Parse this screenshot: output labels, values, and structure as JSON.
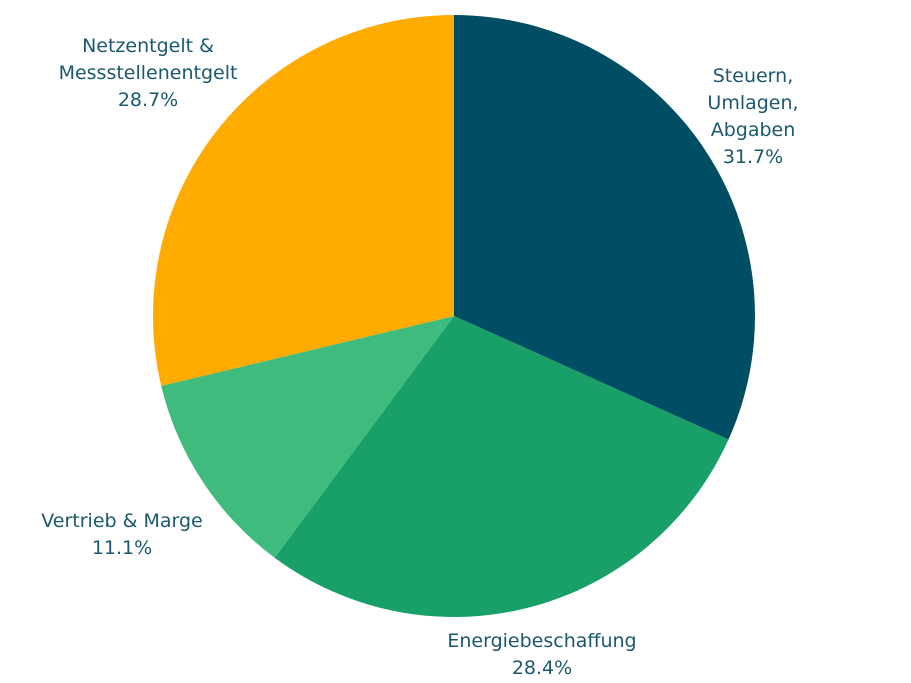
{
  "chart_data": {
    "type": "pie",
    "start": "top",
    "direction": "clockwise",
    "slices": [
      {
        "label_lines": [
          "Steuern,",
          "Umlagen,",
          "Abgaben"
        ],
        "value": 31.7,
        "value_label": "31.7%",
        "color": "#004e63"
      },
      {
        "label_lines": [
          "Energiebeschaffung"
        ],
        "value": 28.4,
        "value_label": "28.4%",
        "color": "#18a068"
      },
      {
        "label_lines": [
          "Vertrieb & Marge"
        ],
        "value": 11.1,
        "value_label": "11.1%",
        "color": "#3fbb7d"
      },
      {
        "label_lines": [
          "Netzentgelt &",
          "Messstellenentgelt"
        ],
        "value": 28.7,
        "value_label": "28.7%",
        "color": "#ffab00"
      }
    ]
  }
}
